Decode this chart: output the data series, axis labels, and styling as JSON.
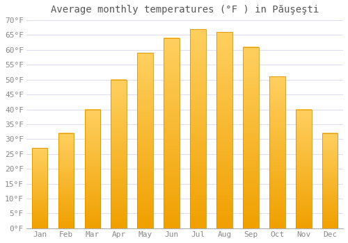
{
  "title": "Average monthly temperatures (°F ) in Păuşeşti",
  "months": [
    "Jan",
    "Feb",
    "Mar",
    "Apr",
    "May",
    "Jun",
    "Jul",
    "Aug",
    "Sep",
    "Oct",
    "Nov",
    "Dec"
  ],
  "values": [
    27,
    32,
    40,
    50,
    59,
    64,
    67,
    66,
    61,
    51,
    40,
    32
  ],
  "bar_color_top": "#FFD060",
  "bar_color_bottom": "#F0A000",
  "bar_edge_color": "#E09000",
  "background_color": "#FFFFFF",
  "grid_color": "#DDDDEE",
  "ylim": [
    0,
    70
  ],
  "yticks": [
    0,
    5,
    10,
    15,
    20,
    25,
    30,
    35,
    40,
    45,
    50,
    55,
    60,
    65,
    70
  ],
  "ytick_labels": [
    "0°F",
    "5°F",
    "10°F",
    "15°F",
    "20°F",
    "25°F",
    "30°F",
    "35°F",
    "40°F",
    "45°F",
    "50°F",
    "55°F",
    "60°F",
    "65°F",
    "70°F"
  ],
  "title_fontsize": 10,
  "tick_fontsize": 8,
  "title_color": "#555555",
  "tick_color": "#888888",
  "bar_width": 0.6
}
